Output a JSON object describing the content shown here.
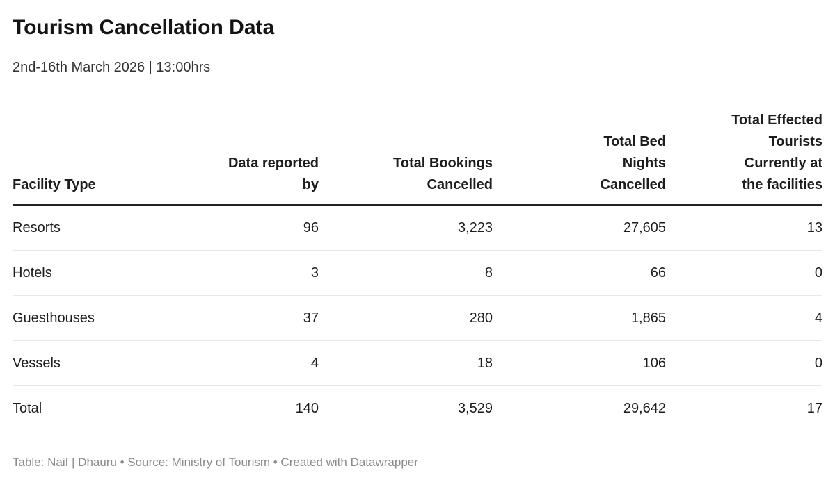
{
  "header": {
    "title": "Tourism Cancellation Data",
    "subtitle": "2nd-16th March 2026 | 13:00hrs"
  },
  "chart_data": {
    "type": "table",
    "title": "Tourism Cancellation Data",
    "subtitle": "2nd-16th March 2026 | 13:00hrs",
    "columns": [
      "Facility Type",
      "Data reported by",
      "Total Bookings Cancelled",
      "Total Bed Nights Cancelled",
      "Total Effected Tourists Currently at the facilities"
    ],
    "rows": [
      {
        "facility_type": "Resorts",
        "data_reported_by": 96,
        "total_bookings_cancelled": 3223,
        "total_bed_nights_cancelled": 27605,
        "total_effected_tourists": 13
      },
      {
        "facility_type": "Hotels",
        "data_reported_by": 3,
        "total_bookings_cancelled": 8,
        "total_bed_nights_cancelled": 66,
        "total_effected_tourists": 0
      },
      {
        "facility_type": "Guesthouses",
        "data_reported_by": 37,
        "total_bookings_cancelled": 280,
        "total_bed_nights_cancelled": 1865,
        "total_effected_tourists": 4
      },
      {
        "facility_type": "Vessels",
        "data_reported_by": 4,
        "total_bookings_cancelled": 18,
        "total_bed_nights_cancelled": 106,
        "total_effected_tourists": 0
      },
      {
        "facility_type": "Total",
        "data_reported_by": 140,
        "total_bookings_cancelled": 3529,
        "total_bed_nights_cancelled": 29642,
        "total_effected_tourists": 17
      }
    ]
  },
  "table": {
    "headers": [
      {
        "label": "Facility Type"
      },
      {
        "label": "Data reported\nby"
      },
      {
        "label": "Total Bookings\nCancelled"
      },
      {
        "label": "Total Bed\nNights\nCancelled"
      },
      {
        "label": "Total Effected\nTourists\nCurrently at\nthe facilities"
      }
    ],
    "rows": [
      {
        "label": "Resorts",
        "values": [
          "96",
          "3,223",
          "27,605",
          "13"
        ]
      },
      {
        "label": "Hotels",
        "values": [
          "3",
          "8",
          "66",
          "0"
        ]
      },
      {
        "label": "Guesthouses",
        "values": [
          "37",
          "280",
          "1,865",
          "4"
        ]
      },
      {
        "label": "Vessels",
        "values": [
          "4",
          "18",
          "106",
          "0"
        ]
      },
      {
        "label": "Total",
        "values": [
          "140",
          "3,529",
          "29,642",
          "17"
        ]
      }
    ]
  },
  "footer": {
    "text": "Table: Naif | Dhauru • Source: Ministry of Tourism • Created with Datawrapper"
  },
  "colors": {
    "text": "#1d1d1d",
    "subtitle": "#333333",
    "header_rule": "#222222",
    "row_divider": "#e8e8e8",
    "footer_text": "#8a8a8a",
    "background": "#ffffff"
  }
}
